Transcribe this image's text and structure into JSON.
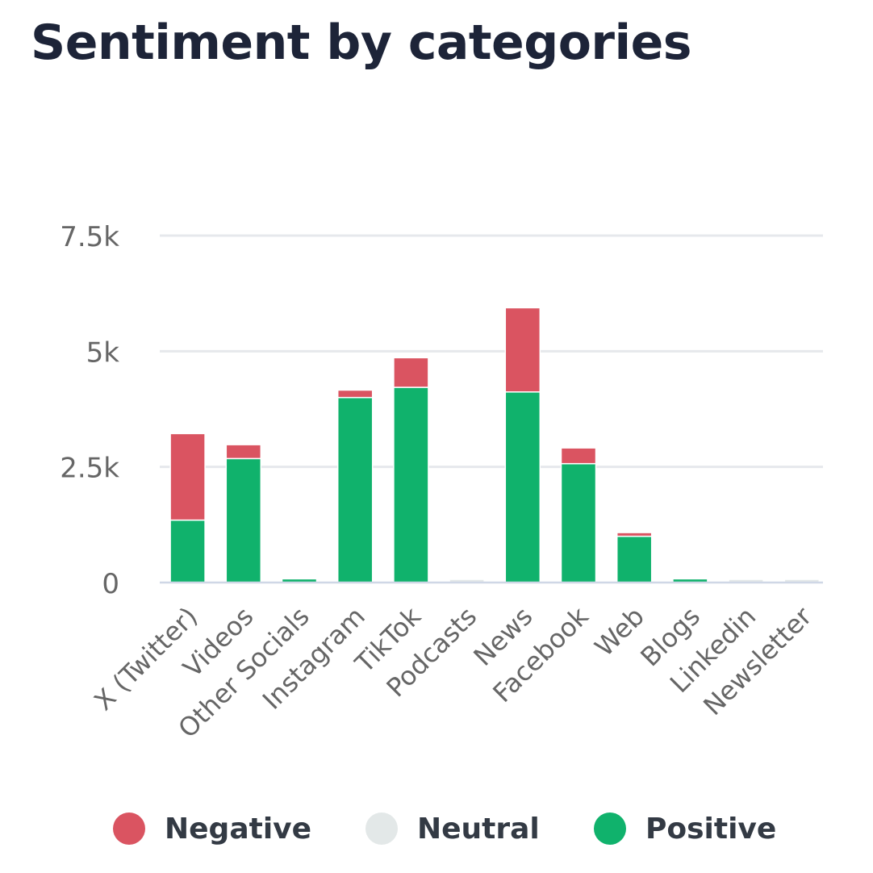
{
  "chart_data": {
    "type": "bar",
    "stacked": true,
    "title": "Sentiment by categories",
    "xlabel": "",
    "ylabel": "",
    "ylim": [
      0,
      7500
    ],
    "grid": true,
    "legend_position": "bottom",
    "yticks": [
      {
        "value": 0,
        "label": "0"
      },
      {
        "value": 2500,
        "label": "2.5k"
      },
      {
        "value": 5000,
        "label": "5k"
      },
      {
        "value": 7500,
        "label": "7.5k"
      }
    ],
    "categories": [
      "X (Twitter)",
      "Videos",
      "Other Socials",
      "Instagram",
      "TikTok",
      "Podcasts",
      "News",
      "Facebook",
      "Web",
      "Blogs",
      "Linkedin",
      "Newsletter"
    ],
    "series": [
      {
        "name": "Positive",
        "color": "#10b26c",
        "values": [
          1350,
          2680,
          80,
          4000,
          4220,
          0,
          4120,
          2570,
          1000,
          80,
          0,
          0
        ]
      },
      {
        "name": "Neutral",
        "color": "#e3e8e8",
        "values": [
          0,
          0,
          0,
          0,
          0,
          20,
          0,
          0,
          0,
          0,
          20,
          20
        ]
      },
      {
        "name": "Negative",
        "color": "#da5461",
        "values": [
          1870,
          300,
          0,
          160,
          640,
          0,
          1820,
          340,
          80,
          0,
          0,
          0
        ]
      }
    ],
    "legend": [
      {
        "name": "Negative",
        "color": "#da5461"
      },
      {
        "name": "Neutral",
        "color": "#e3e8e8"
      },
      {
        "name": "Positive",
        "color": "#10b26c"
      }
    ]
  }
}
